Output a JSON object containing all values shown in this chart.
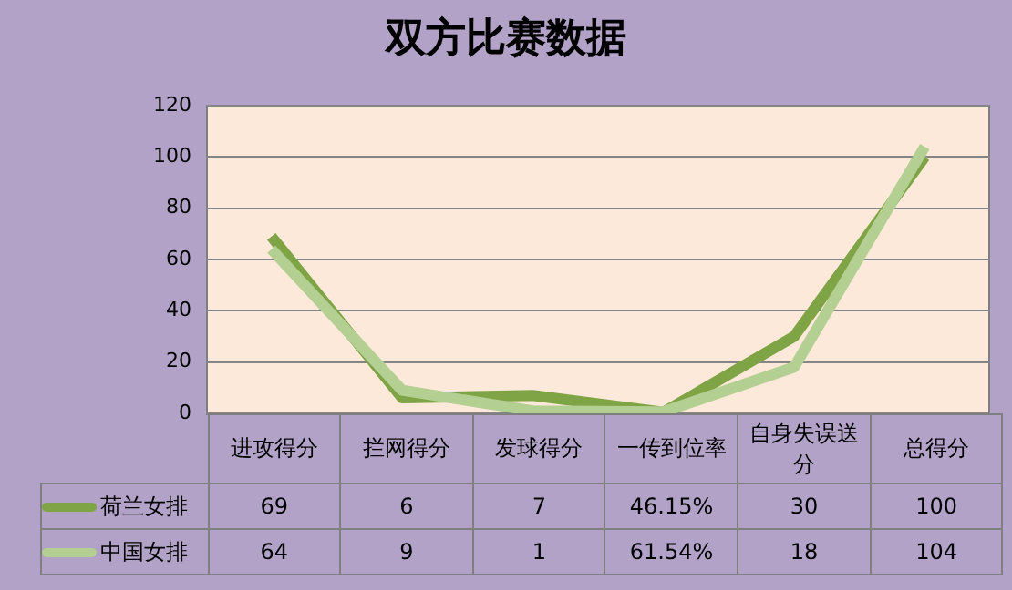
{
  "chart_data": {
    "type": "line",
    "title": "双方比赛数据",
    "categories": [
      "进攻得分",
      "拦网得分",
      "发球得分",
      "一传到位率",
      "自身失误送分",
      "总得分"
    ],
    "series": [
      {
        "name": "荷兰女排",
        "color": "#7fa446",
        "values": [
          69,
          6,
          7,
          0.4615,
          30,
          100
        ],
        "value_labels": [
          "69",
          "6",
          "7",
          "46.15%",
          "30",
          "100"
        ]
      },
      {
        "name": "中国女排",
        "color": "#b3cf91",
        "values": [
          64,
          9,
          1,
          0.6154,
          18,
          104
        ],
        "value_labels": [
          "64",
          "9",
          "1",
          "61.54%",
          "18",
          "104"
        ]
      }
    ],
    "ylim": [
      0,
      120
    ],
    "yticks": [
      0,
      20,
      40,
      60,
      80,
      100,
      120
    ],
    "grid": "y",
    "legend": "bottom left",
    "data_labels": true,
    "marker": "none",
    "line_style": "solid"
  }
}
